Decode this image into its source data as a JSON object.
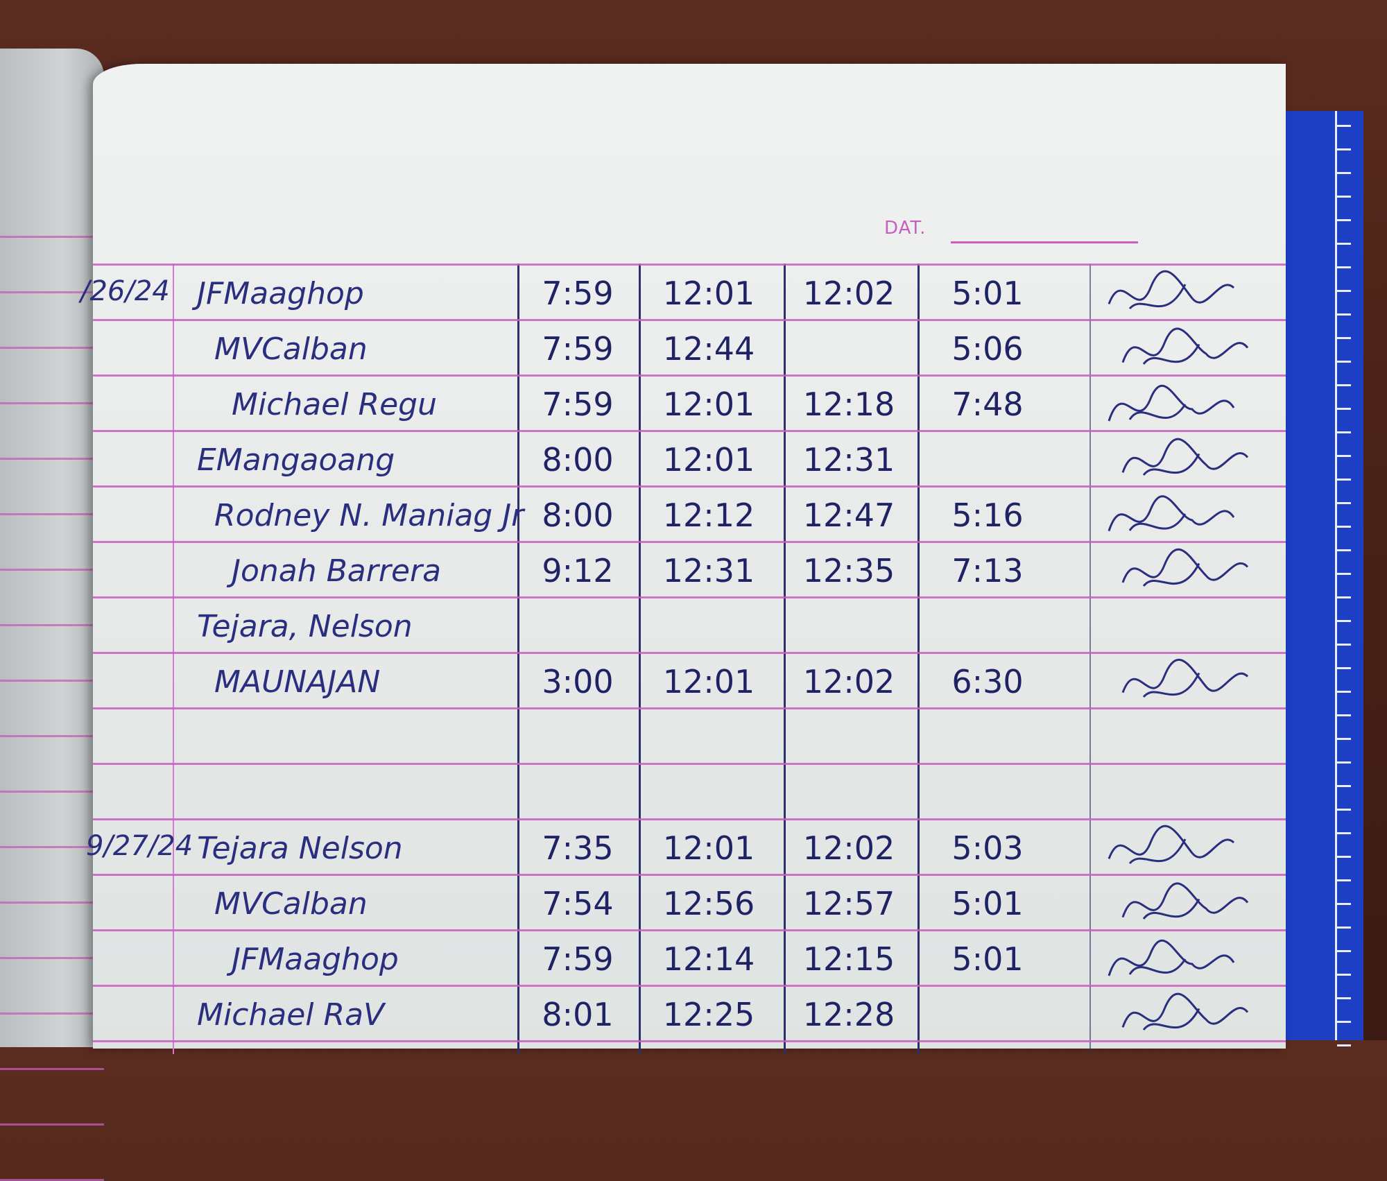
{
  "page": {
    "date_label": "DAT.",
    "ink_color": "#2a2e7e",
    "rule_color": "#c95ec0"
  },
  "log": {
    "blocks": [
      {
        "date": "/26/24",
        "rows": [
          {
            "name": "JFMaaghop",
            "time_in": "7:59",
            "lunch_out": "12:01",
            "lunch_in": "12:02",
            "time_out": "5:01",
            "signed": true
          },
          {
            "name": "MVCalban",
            "time_in": "7:59",
            "lunch_out": "12:44",
            "lunch_in": "",
            "time_out": "5:06",
            "signed": true
          },
          {
            "name": "Michael Regu",
            "time_in": "7:59",
            "lunch_out": "12:01",
            "lunch_in": "12:18",
            "time_out": "7:48",
            "signed": true
          },
          {
            "name": "EMangaoang",
            "time_in": "8:00",
            "lunch_out": "12:01",
            "lunch_in": "12:31",
            "time_out": "",
            "signed": true
          },
          {
            "name": "Rodney N. Maniag Jr",
            "time_in": "8:00",
            "lunch_out": "12:12",
            "lunch_in": "12:47",
            "time_out": "5:16",
            "signed": true
          },
          {
            "name": "Jonah Barrera",
            "time_in": "9:12",
            "lunch_out": "12:31",
            "lunch_in": "12:35",
            "time_out": "7:13",
            "signed": true
          },
          {
            "name": "Tejara, Nelson",
            "time_in": "",
            "lunch_out": "",
            "lunch_in": "",
            "time_out": "",
            "signed": false
          },
          {
            "name": "MAUNAJAN",
            "time_in": "3:00",
            "lunch_out": "12:01",
            "lunch_in": "12:02",
            "time_out": "6:30",
            "signed": true
          }
        ]
      },
      {
        "date": "9/27/24",
        "rows": [
          {
            "name": "Tejara Nelson",
            "time_in": "7:35",
            "lunch_out": "12:01",
            "lunch_in": "12:02",
            "time_out": "5:03",
            "signed": true
          },
          {
            "name": "MVCalban",
            "time_in": "7:54",
            "lunch_out": "12:56",
            "lunch_in": "12:57",
            "time_out": "5:01",
            "signed": true
          },
          {
            "name": "JFMaaghop",
            "time_in": "7:59",
            "lunch_out": "12:14",
            "lunch_in": "12:15",
            "time_out": "5:01",
            "signed": true
          },
          {
            "name": "Michael RaV",
            "time_in": "8:01",
            "lunch_out": "12:25",
            "lunch_in": "12:28",
            "time_out": "",
            "signed": true
          }
        ]
      }
    ]
  }
}
